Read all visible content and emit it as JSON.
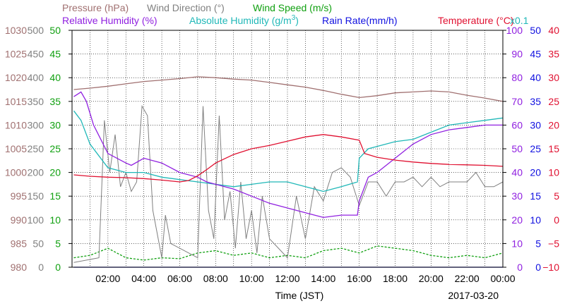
{
  "chart_data": {
    "type": "line",
    "date": "2017-03-20",
    "xlabel": "Time (JST)",
    "x_ticks": [
      "02:00",
      "04:00",
      "06:00",
      "08:00",
      "10:00",
      "12:00",
      "14:00",
      "16:00",
      "18:00",
      "20:00",
      "22:00",
      "00:00"
    ],
    "xlim": [
      "00:00",
      "24:00"
    ],
    "grid": true,
    "legend": {
      "row1": [
        {
          "key": "pressure",
          "text": "Pressure (hPa)",
          "color": "#a07070"
        },
        {
          "key": "wind_dir",
          "text": "Wind Direction (°)",
          "color": "#808080"
        },
        {
          "key": "wind_speed",
          "text": "Wind Speed (m/s)",
          "color": "#10a010"
        }
      ],
      "row2": [
        {
          "key": "rh",
          "text": "Relative Humidity (%)",
          "color": "#9020e0"
        },
        {
          "key": "ah",
          "text": "Absolute Humidity (g/m",
          "text_sup": "3",
          "text_end": ")",
          "color": "#20b8b8"
        },
        {
          "key": "rain",
          "text": "Rain Rate(mm/h)",
          "color": "#1010e0"
        },
        {
          "key": "temp",
          "text": "Temperature (°C)",
          "color": "#e01030"
        },
        {
          "key": "ah_scale",
          "text": "x0.1",
          "color": "#20b8b8"
        }
      ]
    },
    "axes": {
      "pressure": {
        "min": 980,
        "max": 1030,
        "ticks": [
          "1030",
          "1025",
          "1020",
          "1015",
          "1010",
          "1005",
          "1000",
          "995",
          "990",
          "985",
          "980"
        ],
        "color": "#a07070"
      },
      "wind_dir": {
        "min": 0,
        "max": 500,
        "ticks": [
          "500",
          "450",
          "400",
          "350",
          "300",
          "250",
          "200",
          "150",
          "100",
          "50",
          "0"
        ],
        "color": "#808080"
      },
      "wind_speed": {
        "min": 0,
        "max": 50,
        "ticks": [
          "50",
          "45",
          "40",
          "35",
          "30",
          "25",
          "20",
          "15",
          "10",
          "5",
          "0"
        ],
        "color": "#10a010"
      },
      "rh": {
        "min": 0,
        "max": 100,
        "ticks": [
          "100",
          "90",
          "80",
          "70",
          "60",
          "50",
          "40",
          "30",
          "20",
          "10",
          "0"
        ],
        "color": "#9020e0"
      },
      "rain": {
        "min": 0,
        "max": 50,
        "ticks": [
          "50",
          "45",
          "40",
          "35",
          "30",
          "25",
          "20",
          "15",
          "10",
          "5",
          "0"
        ],
        "color": "#1010e0"
      },
      "temp": {
        "min": -10,
        "max": 40,
        "ticks": [
          "40",
          "35",
          "30",
          "25",
          "20",
          "15",
          "10",
          "5",
          "0",
          "−5",
          "−10"
        ],
        "color": "#e01030"
      }
    },
    "series": [
      {
        "name": "Pressure (hPa)",
        "key": "pressure",
        "axis": "pressure",
        "color": "#a07070",
        "x": [
          0.1,
          1,
          2,
          3,
          4,
          5,
          6,
          7,
          8,
          9,
          10,
          11,
          12,
          13,
          14,
          15,
          16,
          17,
          18,
          19,
          20,
          21,
          22,
          23,
          24
        ],
        "y": [
          1017.5,
          1017.8,
          1018.2,
          1018.7,
          1019.2,
          1019.5,
          1019.8,
          1020.2,
          1020.0,
          1019.7,
          1019.5,
          1019.0,
          1018.5,
          1018.0,
          1017.3,
          1016.5,
          1015.8,
          1016.2,
          1016.8,
          1017.0,
          1017.2,
          1017.0,
          1016.3,
          1015.7,
          1015.0
        ]
      },
      {
        "name": "Temperature (°C)",
        "key": "temp",
        "axis": "temp",
        "color": "#e01030",
        "x": [
          0.1,
          1,
          2,
          3,
          4,
          5,
          6,
          6.5,
          7,
          7.5,
          8,
          9,
          10,
          11,
          12,
          13,
          14,
          15,
          16,
          16.3,
          17,
          18,
          19,
          20,
          21,
          22,
          23,
          24
        ],
        "y": [
          9.5,
          9.2,
          9.0,
          8.9,
          8.7,
          8.4,
          8.0,
          8.3,
          9.3,
          10.6,
          12.0,
          13.8,
          15.0,
          15.7,
          16.6,
          17.5,
          18.0,
          17.5,
          16.8,
          14.0,
          13.2,
          12.6,
          12.2,
          11.9,
          11.7,
          11.6,
          11.5,
          11.3
        ]
      },
      {
        "name": "Relative Humidity (%)",
        "key": "rh",
        "axis": "rh",
        "color": "#9020e0",
        "x": [
          0.1,
          0.5,
          0.8,
          1.2,
          2,
          3,
          3.3,
          4,
          5,
          6,
          7,
          7.5,
          8,
          9,
          10,
          11,
          12,
          13,
          14,
          15,
          15.9,
          16.0,
          16.5,
          17,
          18,
          19,
          20,
          21,
          22,
          23,
          24
        ],
        "y": [
          72,
          74,
          70,
          60,
          48,
          44,
          43,
          46,
          44,
          40,
          38,
          36,
          35,
          33,
          30,
          27,
          25,
          23,
          21,
          22,
          22,
          28,
          38,
          40,
          46,
          52,
          56,
          58,
          59,
          60,
          60
        ]
      },
      {
        "name": "Absolute Humidity (g/m³) x0.1",
        "key": "ah",
        "axis": "rh",
        "color": "#20b8b8",
        "x": [
          0.1,
          0.5,
          1,
          2,
          3,
          4,
          5,
          6,
          7,
          8,
          9,
          10,
          11,
          12,
          13,
          14,
          15,
          15.9,
          16.0,
          16.5,
          17,
          18,
          19,
          20,
          21,
          22,
          23,
          24
        ],
        "y": [
          66,
          62,
          52,
          42,
          40,
          40,
          38,
          37,
          36,
          35,
          34,
          35,
          36,
          36,
          34,
          32,
          34,
          36,
          46,
          50,
          51,
          53,
          54,
          57,
          60,
          61,
          62,
          63
        ]
      },
      {
        "name": "Wind Direction (°)",
        "key": "wind_dir",
        "axis": "wind_dir",
        "color": "#808080",
        "x": [
          0.1,
          1.5,
          1.8,
          2.1,
          2.4,
          2.7,
          3,
          3.3,
          3.6,
          3.9,
          4.2,
          4.5,
          5,
          5.2,
          5.5,
          6,
          6.5,
          7,
          7.3,
          7.6,
          7.9,
          8.2,
          8.5,
          8.8,
          9.1,
          9.4,
          9.7,
          10,
          10.3,
          10.6,
          11,
          11.5,
          12,
          12.5,
          13,
          13.5,
          14,
          14.5,
          15,
          15.5,
          16,
          16.5,
          17,
          17.5,
          18,
          18.5,
          19,
          19.5,
          20,
          20.5,
          21,
          21.5,
          22,
          22.5,
          23,
          23.5,
          24
        ],
        "y": [
          10,
          20,
          310,
          200,
          280,
          170,
          200,
          160,
          180,
          340,
          320,
          120,
          20,
          110,
          50,
          40,
          30,
          20,
          340,
          120,
          60,
          320,
          100,
          160,
          40,
          180,
          60,
          120,
          30,
          150,
          60,
          40,
          20,
          150,
          60,
          170,
          140,
          200,
          210,
          190,
          130,
          180,
          180,
          150,
          180,
          180,
          190,
          170,
          190,
          170,
          180,
          180,
          180,
          200,
          170,
          170,
          180
        ]
      },
      {
        "name": "Wind Speed (m/s)",
        "key": "wind_speed",
        "axis": "wind_speed",
        "color": "#10a010",
        "x": [
          0.1,
          1,
          2,
          3,
          4,
          5,
          6,
          7,
          8,
          9,
          10,
          11,
          12,
          13,
          14,
          15,
          16,
          17,
          18,
          19,
          20,
          21,
          22,
          23,
          24
        ],
        "y": [
          2.0,
          2.5,
          4.0,
          2.0,
          1.5,
          2.0,
          1.8,
          3.0,
          3.5,
          2.5,
          3.0,
          2.0,
          2.5,
          2.0,
          3.5,
          4.0,
          3.0,
          4.5,
          4.0,
          3.5,
          2.5,
          2.0,
          2.5,
          2.0,
          3.0
        ]
      },
      {
        "name": "Rain Rate(mm/h)",
        "key": "rain",
        "axis": "rain",
        "color": "#1010e0",
        "x": [
          0.1,
          24
        ],
        "y": [
          0,
          0
        ]
      }
    ]
  }
}
